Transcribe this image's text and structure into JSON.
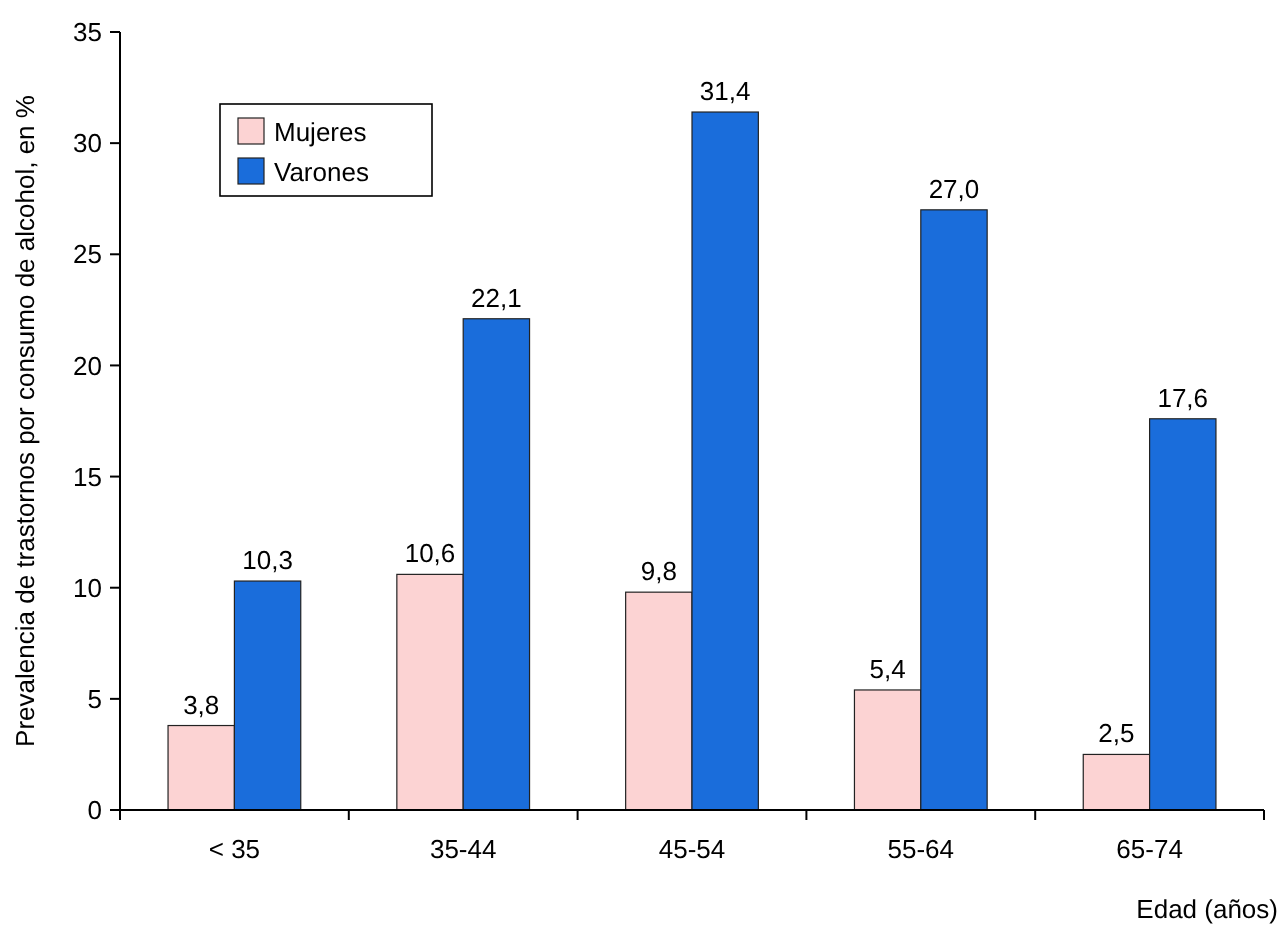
{
  "chart_data": {
    "type": "bar",
    "xlabel": "Edad (años)",
    "ylabel": "Prevalencia de trastornos por consumo de alcohol, en %",
    "categories": [
      "< 35",
      "35-44",
      "45-54",
      "55-64",
      "65-74"
    ],
    "series": [
      {
        "name": "Mujeres",
        "color": "#fcd3d3",
        "values": [
          3.8,
          10.6,
          9.8,
          5.4,
          2.5
        ],
        "value_labels": [
          "3,8",
          "10,6",
          "9,8",
          "5,4",
          "2,5"
        ]
      },
      {
        "name": "Varones",
        "color": "#1a6ddb",
        "values": [
          10.3,
          22.1,
          31.4,
          27.0,
          17.6
        ],
        "value_labels": [
          "10,3",
          "22,1",
          "31,4",
          "27,0",
          "17,6"
        ]
      }
    ],
    "ylim": [
      0,
      35
    ],
    "yticks": [
      0,
      5,
      10,
      15,
      20,
      25,
      30,
      35
    ],
    "grid": false,
    "legend": "top left"
  }
}
